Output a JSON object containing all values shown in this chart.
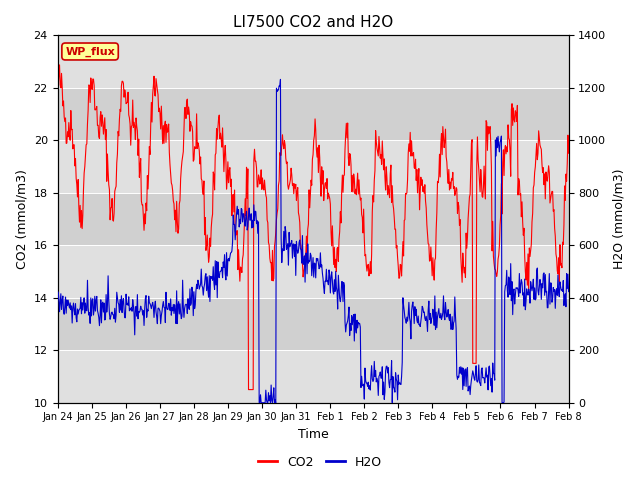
{
  "title": "LI7500 CO2 and H2O",
  "xlabel": "Time",
  "ylabel_left": "CO2 (mmol/m3)",
  "ylabel_right": "H2O (mmol/m3)",
  "ylim_left": [
    10,
    24
  ],
  "ylim_right": [
    0,
    1400
  ],
  "yticks_left": [
    10,
    12,
    14,
    16,
    18,
    20,
    22,
    24
  ],
  "yticks_right": [
    0,
    200,
    400,
    600,
    800,
    1000,
    1200,
    1400
  ],
  "xtick_labels": [
    "Jan 24",
    "Jan 25",
    "Jan 26",
    "Jan 27",
    "Jan 28",
    "Jan 29",
    "Jan 30",
    "Jan 31",
    "Feb 1",
    "Feb 2",
    "Feb 3",
    "Feb 4",
    "Feb 5",
    "Feb 6",
    "Feb 7",
    "Feb 8"
  ],
  "co2_color": "#ff0000",
  "h2o_color": "#0000cc",
  "plot_bg": "#e8e8e8",
  "band_colors": [
    "#e0e0e0",
    "#d0d0d0"
  ],
  "annotation_text": "WP_flux",
  "annotation_bg": "#ffff99",
  "annotation_edge": "#cc0000",
  "title_fontsize": 11,
  "axis_fontsize": 9,
  "tick_fontsize": 8,
  "legend_entries": [
    "CO2",
    "H2O"
  ],
  "figwidth": 6.4,
  "figheight": 4.8,
  "dpi": 100
}
